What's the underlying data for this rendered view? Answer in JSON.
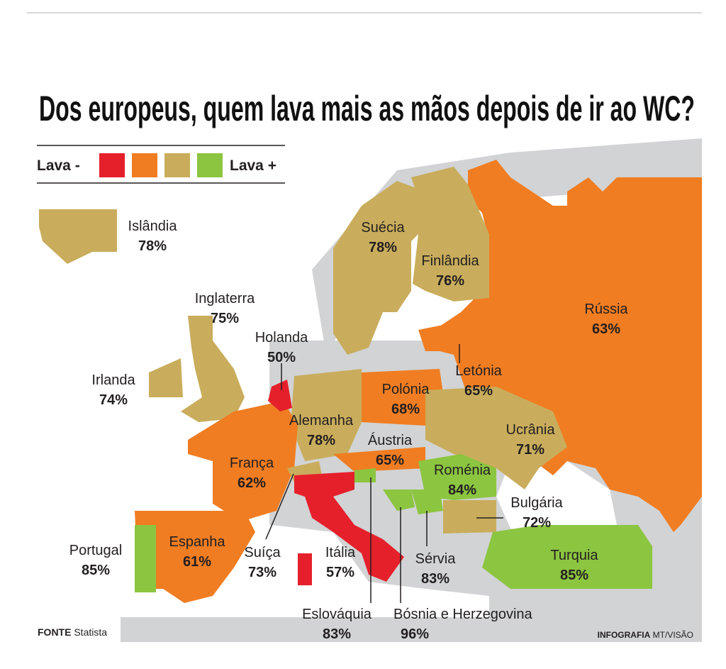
{
  "title": "Dos europeus, quem lava mais as mãos depois de ir ao WC?",
  "legend": {
    "low": "Lava -",
    "high": "Lava +",
    "colors": [
      "#e5202b",
      "#f07d22",
      "#c9ad5c",
      "#8cc540"
    ]
  },
  "countries": [
    {
      "name": "Islândia",
      "value": "78%",
      "color": "#c9ad5c"
    },
    {
      "name": "Suécia",
      "value": "78%",
      "color": "#c9ad5c"
    },
    {
      "name": "Finlândia",
      "value": "76%",
      "color": "#c9ad5c"
    },
    {
      "name": "Rússia",
      "value": "63%",
      "color": "#f07d22"
    },
    {
      "name": "Inglaterra",
      "value": "75%",
      "color": "#c9ad5c"
    },
    {
      "name": "Holanda",
      "value": "50%",
      "color": "#e5202b"
    },
    {
      "name": "Letónia",
      "value": "65%",
      "color": "#f07d22"
    },
    {
      "name": "Irlanda",
      "value": "74%",
      "color": "#c9ad5c"
    },
    {
      "name": "Polónia",
      "value": "68%",
      "color": "#f07d22"
    },
    {
      "name": "Alemanha",
      "value": "78%",
      "color": "#c9ad5c"
    },
    {
      "name": "Áustria",
      "value": "65%",
      "color": "#f07d22"
    },
    {
      "name": "Ucrânia",
      "value": "71%",
      "color": "#c9ad5c"
    },
    {
      "name": "França",
      "value": "62%",
      "color": "#f07d22"
    },
    {
      "name": "Roménia",
      "value": "84%",
      "color": "#8cc540"
    },
    {
      "name": "Bulgária",
      "value": "72%",
      "color": "#c9ad5c"
    },
    {
      "name": "Portugal",
      "value": "85%",
      "color": "#8cc540"
    },
    {
      "name": "Espanha",
      "value": "61%",
      "color": "#f07d22"
    },
    {
      "name": "Suíça",
      "value": "73%",
      "color": "#c9ad5c"
    },
    {
      "name": "Itália",
      "value": "57%",
      "color": "#e5202b"
    },
    {
      "name": "Sérvia",
      "value": "83%",
      "color": "#8cc540"
    },
    {
      "name": "Turquia",
      "value": "85%",
      "color": "#8cc540"
    },
    {
      "name": "Eslováquia",
      "value": "83%",
      "color": "#8cc540"
    },
    {
      "name": "Bósnia e Herzegovina",
      "value": "96%",
      "color": "#8cc540"
    }
  ],
  "footer": {
    "source_label": "FONTE",
    "source": "Statista",
    "credit_label": "INFOGRAFIA",
    "credit": "MT/VISÃO"
  }
}
